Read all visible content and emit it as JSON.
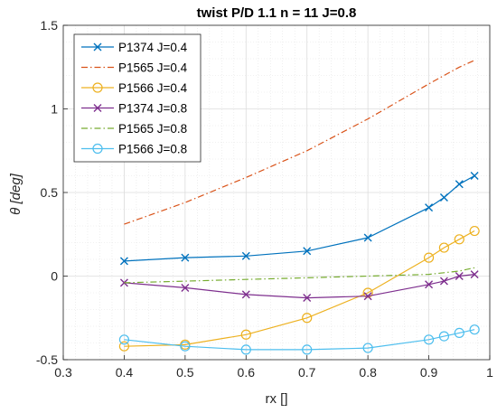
{
  "chart_data": {
    "type": "line",
    "title": "twist P/D 1.1 n = 11 J=0.8",
    "xlabel": "rx []",
    "ylabel": "θ [deg]",
    "xlim": [
      0.3,
      1.0
    ],
    "ylim": [
      -0.5,
      1.5
    ],
    "xticks": [
      "0.3",
      "0.4",
      "0.5",
      "0.6",
      "0.7",
      "0.8",
      "0.9",
      "1"
    ],
    "yticks": [
      "-0.5",
      "0",
      "0.5",
      "1",
      "1.5"
    ],
    "grid": true,
    "minor_grid": true,
    "legend_position": "top-left",
    "series": [
      {
        "name": "P1374 J=0.4",
        "color": "#0072BD",
        "line": "solid",
        "marker": "x",
        "x": [
          0.4,
          0.5,
          0.6,
          0.7,
          0.8,
          0.9,
          0.925,
          0.95,
          0.975
        ],
        "y": [
          0.09,
          0.11,
          0.12,
          0.15,
          0.23,
          0.41,
          0.47,
          0.55,
          0.6
        ]
      },
      {
        "name": "P1565 J=0.4",
        "color": "#D95319",
        "line": "dashdot",
        "marker": "none",
        "x": [
          0.4,
          0.5,
          0.6,
          0.7,
          0.8,
          0.9,
          0.925,
          0.95,
          0.975
        ],
        "y": [
          0.31,
          0.44,
          0.59,
          0.75,
          0.94,
          1.15,
          1.2,
          1.25,
          1.29
        ]
      },
      {
        "name": "P1566 J=0.4",
        "color": "#EDB120",
        "line": "solid",
        "marker": "o",
        "x": [
          0.4,
          0.5,
          0.6,
          0.7,
          0.8,
          0.9,
          0.925,
          0.95,
          0.975
        ],
        "y": [
          -0.42,
          -0.41,
          -0.35,
          -0.25,
          -0.1,
          0.11,
          0.17,
          0.22,
          0.27
        ]
      },
      {
        "name": "P1374 J=0.8",
        "color": "#7E2F8E",
        "line": "solid",
        "marker": "x",
        "x": [
          0.4,
          0.5,
          0.6,
          0.7,
          0.8,
          0.9,
          0.925,
          0.95,
          0.975
        ],
        "y": [
          -0.04,
          -0.07,
          -0.11,
          -0.13,
          -0.12,
          -0.05,
          -0.03,
          0.0,
          0.01
        ]
      },
      {
        "name": "P1565 J=0.8",
        "color": "#77AC30",
        "line": "dashdot",
        "marker": "none",
        "x": [
          0.4,
          0.5,
          0.6,
          0.7,
          0.8,
          0.9,
          0.925,
          0.95,
          0.975
        ],
        "y": [
          -0.04,
          -0.03,
          -0.02,
          -0.01,
          0.0,
          0.01,
          0.02,
          0.03,
          0.05
        ]
      },
      {
        "name": "P1566 J=0.8",
        "color": "#4DBEEE",
        "line": "solid",
        "marker": "o",
        "x": [
          0.4,
          0.5,
          0.6,
          0.7,
          0.8,
          0.9,
          0.925,
          0.95,
          0.975
        ],
        "y": [
          -0.38,
          -0.42,
          -0.44,
          -0.44,
          -0.43,
          -0.38,
          -0.36,
          -0.34,
          -0.32
        ]
      }
    ]
  }
}
